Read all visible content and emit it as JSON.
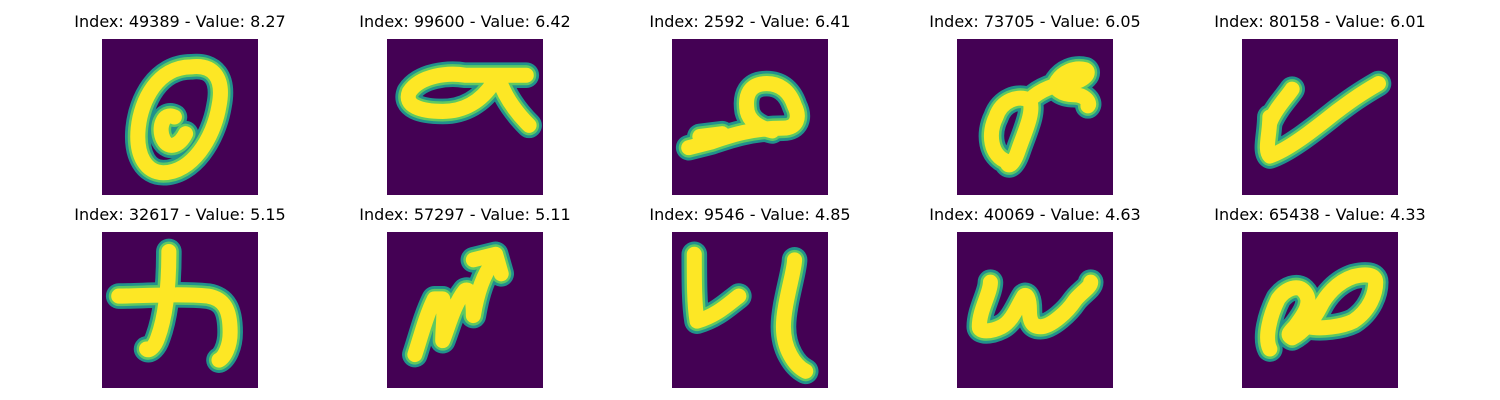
{
  "colors": {
    "background": "#440154",
    "stroke_outer": "#21918c",
    "stroke_mid": "#5ec962",
    "stroke_core": "#fde725"
  },
  "panels": [
    {
      "title": "Index: 49389 - Value: 8.27",
      "glyph": "zero-slashed"
    },
    {
      "title": "Index: 99600 - Value: 6.42",
      "glyph": "alpha-with-bar"
    },
    {
      "title": "Index: 2592 - Value: 6.41",
      "glyph": "p-loop-sideways"
    },
    {
      "title": "Index: 73705 - Value: 6.05",
      "glyph": "figure-eight-tilted"
    },
    {
      "title": "Index: 80158 - Value: 6.01",
      "glyph": "check-mark"
    },
    {
      "title": "Index: 32617 - Value: 5.15",
      "glyph": "katakana-ka"
    },
    {
      "title": "Index: 57297 - Value: 5.11",
      "glyph": "m-with-arrow"
    },
    {
      "title": "Index: 9546 - Value: 4.85",
      "glyph": "y-shape"
    },
    {
      "title": "Index: 40069 - Value: 4.63",
      "glyph": "wave-u"
    },
    {
      "title": "Index: 65438 - Value: 4.33",
      "glyph": "double-loop"
    }
  ]
}
